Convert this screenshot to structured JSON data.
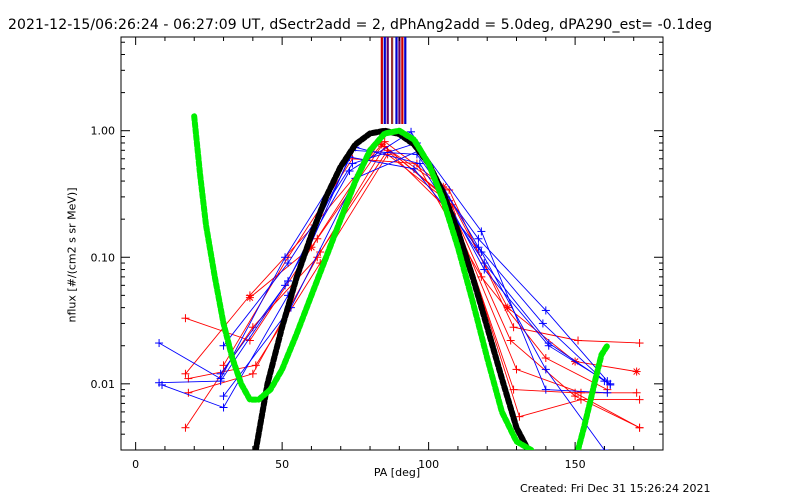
{
  "header": {
    "title": "2021-12-15/06:26:24 - 06:27:09 UT, dSectr2add = 2, dPhAng2add = 5.0deg, dPA290_est= -0.1deg"
  },
  "footer": {
    "created": "Created: Fri Dec 31 15:26:24 2021"
  },
  "chart_data": {
    "type": "line",
    "title": "2021-12-15/06:26:24 - 06:27:09 UT, dSectr2add = 2, dPhAng2add = 5.0deg, dPA290_est= -0.1deg",
    "xlabel": "PA [deg]",
    "ylabel": "nflux [#/(cm2 s sr MeV)]",
    "xlim": [
      -5,
      180
    ],
    "ylim": [
      0.003,
      5.5
    ],
    "yscale": "log",
    "grid": false,
    "x_ticks": [
      0,
      50,
      100,
      150
    ],
    "x_tick_labels": [
      "0",
      "50",
      "100",
      "150"
    ],
    "y_ticks": [
      0.01,
      0.1,
      1.0
    ],
    "y_tick_labels": [
      "0.01",
      "0.10",
      "1.00"
    ],
    "colors": {
      "red_series": "#ff0000",
      "blue_series": "#0000ff",
      "fit_black": "#000000",
      "fit_green": "#00ee00",
      "marker_bars": [
        "#cc0000",
        "#0000cc",
        "#660066",
        "#993333"
      ]
    },
    "series": [
      {
        "color": "red",
        "marker": "+",
        "x": [
          17,
          39,
          62,
          85,
          107,
          129,
          151,
          172
        ],
        "y": [
          0.033,
          0.022,
          0.14,
          0.82,
          0.34,
          0.028,
          0.022,
          0.021
        ]
      },
      {
        "color": "red",
        "marker": "+",
        "x": [
          17,
          39,
          61,
          84,
          106,
          128,
          150,
          172
        ],
        "y": [
          0.012,
          0.05,
          0.18,
          0.78,
          0.3,
          0.022,
          0.008,
          0.0045
        ]
      },
      {
        "color": "red",
        "marker": "+",
        "x": [
          18,
          40,
          63,
          86,
          108,
          130,
          152,
          171
        ],
        "y": [
          0.0085,
          0.012,
          0.11,
          0.7,
          0.22,
          0.013,
          0.0085,
          0.0085
        ]
      },
      {
        "color": "red",
        "marker": "+",
        "x": [
          17,
          40,
          62,
          85,
          107,
          129,
          150,
          172
        ],
        "y": [
          0.0045,
          0.028,
          0.1,
          0.75,
          0.28,
          0.009,
          0.0085,
          0.0045
        ]
      },
      {
        "color": "red",
        "marker": "+",
        "x": [
          18,
          41,
          63,
          86,
          108,
          131,
          152,
          172
        ],
        "y": [
          0.011,
          0.014,
          0.09,
          0.65,
          0.26,
          0.0055,
          0.0075,
          0.0075
        ]
      },
      {
        "color": "red",
        "marker": "*",
        "x": [
          39,
          60,
          83,
          105,
          127,
          150,
          171
        ],
        "y": [
          0.048,
          0.12,
          0.8,
          0.36,
          0.04,
          0.015,
          0.0125
        ]
      },
      {
        "color": "red",
        "marker": "+",
        "x": [
          30,
          52,
          74,
          96,
          118,
          140,
          161
        ],
        "y": [
          0.014,
          0.1,
          0.6,
          0.55,
          0.07,
          0.016,
          0.009
        ]
      },
      {
        "color": "blue",
        "marker": "+",
        "x": [
          8,
          29,
          51,
          74,
          96,
          117,
          140,
          161
        ],
        "y": [
          0.021,
          0.011,
          0.1,
          0.7,
          0.65,
          0.14,
          0.038,
          0.0105
        ]
      },
      {
        "color": "blue",
        "marker": "+",
        "x": [
          8,
          29,
          52,
          75,
          97,
          119,
          141,
          162
        ],
        "y": [
          0.0102,
          0.0105,
          0.065,
          0.74,
          0.55,
          0.09,
          0.021,
          0.0098
        ]
      },
      {
        "color": "blue",
        "marker": "+",
        "x": [
          9,
          30,
          52,
          73,
          95,
          118,
          140,
          160
        ],
        "y": [
          0.0098,
          0.0065,
          0.05,
          0.62,
          0.5,
          0.11,
          0.013,
          0.003
        ]
      },
      {
        "color": "blue",
        "marker": "+",
        "x": [
          30,
          52,
          74,
          96,
          118,
          140,
          161
        ],
        "y": [
          0.02,
          0.09,
          0.55,
          0.8,
          0.16,
          0.009,
          0.0085
        ]
      },
      {
        "color": "blue",
        "marker": "+",
        "x": [
          29,
          51,
          73,
          94,
          117,
          139,
          160
        ],
        "y": [
          0.012,
          0.06,
          0.48,
          0.98,
          0.12,
          0.03,
          0.0105
        ]
      },
      {
        "color": "blue",
        "marker": "+",
        "x": [
          30,
          53,
          75,
          97,
          119,
          141,
          162
        ],
        "y": [
          0.008,
          0.04,
          0.42,
          0.7,
          0.08,
          0.02,
          0.01
        ]
      }
    ],
    "fits": [
      {
        "color": "black",
        "style": "thick-dashed",
        "x": [
          41,
          45,
          50,
          55,
          60,
          65,
          70,
          75,
          80,
          85,
          90,
          95,
          100,
          105,
          110,
          115,
          120,
          125,
          130,
          134
        ],
        "y": [
          0.003,
          0.01,
          0.028,
          0.07,
          0.15,
          0.3,
          0.52,
          0.78,
          0.95,
          1.0,
          0.94,
          0.78,
          0.55,
          0.32,
          0.16,
          0.07,
          0.028,
          0.011,
          0.0045,
          0.003
        ]
      },
      {
        "color": "green",
        "style": "thick-dashed",
        "x": [
          20,
          22,
          24,
          27,
          30,
          33,
          36,
          39,
          42,
          46,
          50,
          55,
          60,
          65,
          70,
          75,
          80,
          85,
          90,
          95,
          100,
          105,
          110,
          115,
          120,
          125,
          130,
          135
        ],
        "y": [
          1.3,
          0.45,
          0.18,
          0.07,
          0.03,
          0.016,
          0.01,
          0.0075,
          0.0075,
          0.009,
          0.013,
          0.025,
          0.05,
          0.1,
          0.2,
          0.4,
          0.7,
          0.95,
          1.0,
          0.85,
          0.55,
          0.28,
          0.12,
          0.045,
          0.016,
          0.006,
          0.0035,
          0.003
        ]
      },
      {
        "color": "green",
        "style": "thick-dashed",
        "x": [
          151,
          153,
          155,
          157,
          159,
          161
        ],
        "y": [
          0.003,
          0.0045,
          0.007,
          0.011,
          0.017,
          0.02
        ]
      }
    ],
    "markers_top": [
      {
        "x": 84,
        "color": "#cc0000"
      },
      {
        "x": 85,
        "color": "#0000cc"
      },
      {
        "x": 86,
        "color": "#660066"
      },
      {
        "x": 87.5,
        "color": "#993333"
      },
      {
        "x": 89,
        "color": "#0000cc"
      },
      {
        "x": 90,
        "color": "#660066"
      },
      {
        "x": 91,
        "color": "#cc0000"
      },
      {
        "x": 92,
        "color": "#0000cc"
      }
    ]
  }
}
